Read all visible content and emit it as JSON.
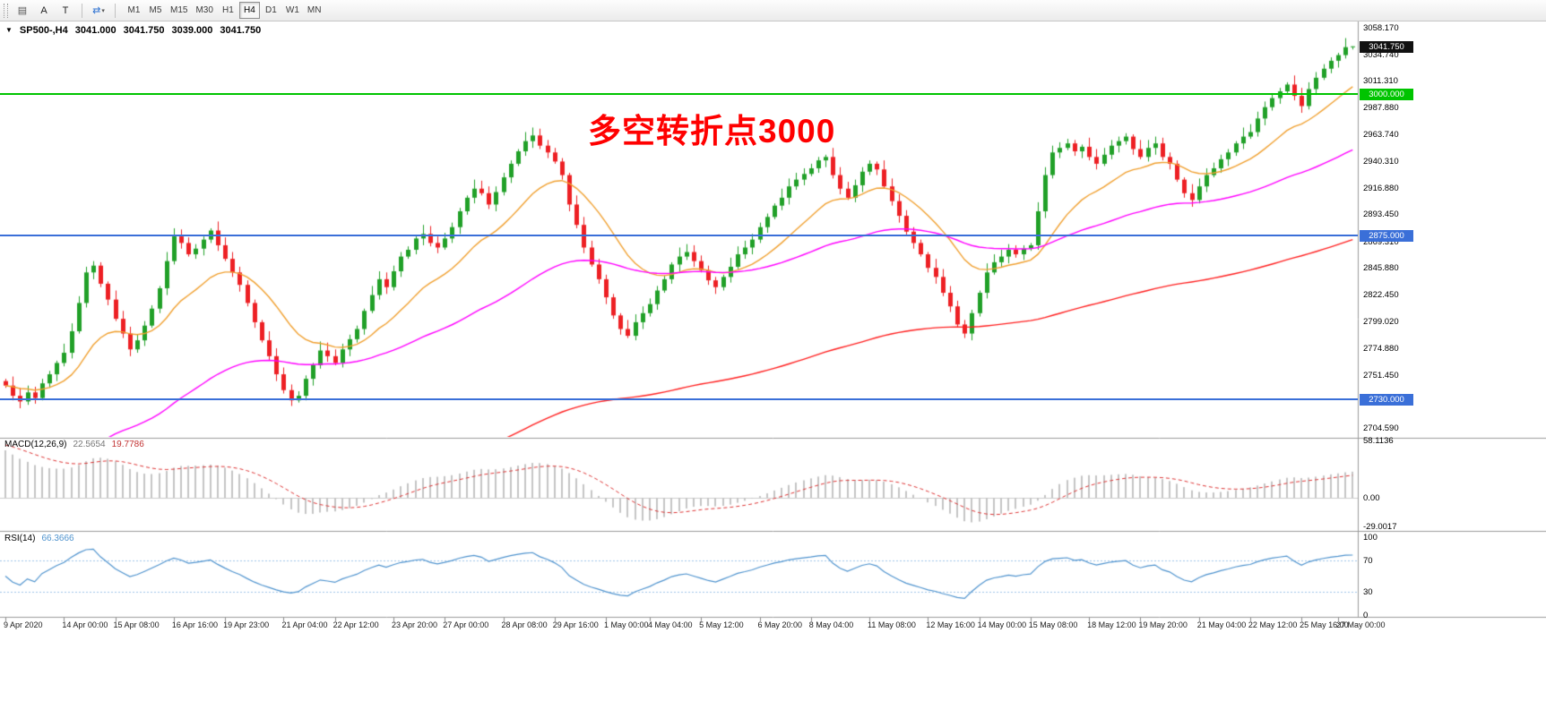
{
  "toolbar": {
    "tools": [
      {
        "name": "chart-window-tool",
        "glyph": "▤",
        "color": "#555555"
      },
      {
        "name": "annotation-letter-tool",
        "glyph": "A",
        "color": "#222222"
      },
      {
        "name": "text-label-tool",
        "glyph": "T",
        "color": "#222222",
        "sep_after": true
      },
      {
        "name": "symbol-cycle-tool",
        "glyph": "⇄",
        "color": "#2a6fd0",
        "caret": "▾",
        "sep_after": true
      }
    ],
    "timeframes": [
      "M1",
      "M5",
      "M15",
      "M30",
      "H1",
      "H4",
      "D1",
      "W1",
      "MN"
    ],
    "active_timeframe": "H4"
  },
  "chart": {
    "header": {
      "collapse_icon": "▼",
      "symbol": "SP500-,H4",
      "open": "3041.000",
      "high": "3041.750",
      "low": "3039.000",
      "close": "3041.750"
    },
    "annotation": {
      "text": "多空转折点3000",
      "color": "#ff0000"
    },
    "current_price": {
      "label": "3041.750",
      "value": 3041.75,
      "bg": "#111111"
    },
    "colors": {
      "up": "#21a028",
      "down": "#ed2024"
    },
    "price_axis": [
      {
        "v": 3058.17,
        "t": "3058.170"
      },
      {
        "v": 3034.74,
        "t": "3034.740"
      },
      {
        "v": 3011.31,
        "t": "3011.310"
      },
      {
        "v": 2987.88,
        "t": "2987.880"
      },
      {
        "v": 2963.74,
        "t": "2963.740"
      },
      {
        "v": 2940.31,
        "t": "2940.310"
      },
      {
        "v": 2916.88,
        "t": "2916.880"
      },
      {
        "v": 2893.45,
        "t": "2893.450"
      },
      {
        "v": 2869.31,
        "t": "2869.310"
      },
      {
        "v": 2845.88,
        "t": "2845.880"
      },
      {
        "v": 2822.45,
        "t": "2822.450"
      },
      {
        "v": 2799.02,
        "t": "2799.020"
      },
      {
        "v": 2774.88,
        "t": "2774.880"
      },
      {
        "v": 2751.45,
        "t": "2751.450"
      },
      {
        "v": 2704.59,
        "t": "2704.590"
      }
    ]
  },
  "macd_panel": {
    "title": "MACD(12,26,9)",
    "main_value": "22.5654",
    "signal_value": "19.7786",
    "axis": [
      {
        "v": 58.1136,
        "t": "58.1136"
      },
      {
        "v": 0,
        "t": "0.00"
      },
      {
        "v": -29.0017,
        "t": "-29.0017"
      }
    ]
  },
  "rsi_panel": {
    "title": "RSI(14)",
    "value": "66.3666",
    "levels": [
      70,
      30
    ],
    "axis": [
      {
        "v": 100,
        "t": "100"
      },
      {
        "v": 70,
        "t": "70"
      },
      {
        "v": 30,
        "t": "30"
      },
      {
        "v": 0,
        "t": "0"
      }
    ]
  },
  "time_axis": {
    "labels": [
      {
        "t": "9 Apr 2020",
        "bar": 0
      },
      {
        "t": "14 Apr 00:00",
        "bar": 8
      },
      {
        "t": "15 Apr 08:00",
        "bar": 15
      },
      {
        "t": "16 Apr 16:00",
        "bar": 23
      },
      {
        "t": "19 Apr 23:00",
        "bar": 30
      },
      {
        "t": "21 Apr 04:00",
        "bar": 38
      },
      {
        "t": "22 Apr 12:00",
        "bar": 45
      },
      {
        "t": "23 Apr 20:00",
        "bar": 53
      },
      {
        "t": "27 Apr 00:00",
        "bar": 60
      },
      {
        "t": "28 Apr 08:00",
        "bar": 68
      },
      {
        "t": "29 Apr 16:00",
        "bar": 75
      },
      {
        "t": "1 May 00:00",
        "bar": 82
      },
      {
        "t": "4 May 04:00",
        "bar": 88
      },
      {
        "t": "5 May 12:00",
        "bar": 95
      },
      {
        "t": "6 May 20:00",
        "bar": 103
      },
      {
        "t": "8 May 04:00",
        "bar": 110
      },
      {
        "t": "11 May 08:00",
        "bar": 118
      },
      {
        "t": "12 May 16:00",
        "bar": 126
      },
      {
        "t": "14 May 00:00",
        "bar": 133
      },
      {
        "t": "15 May 08:00",
        "bar": 140
      },
      {
        "t": "18 May 12:00",
        "bar": 148
      },
      {
        "t": "19 May 20:00",
        "bar": 155
      },
      {
        "t": "21 May 04:00",
        "bar": 163
      },
      {
        "t": "22 May 12:00",
        "bar": 170
      },
      {
        "t": "25 May 16:00",
        "bar": 177
      },
      {
        "t": "27 May 00:00",
        "bar": 182
      }
    ]
  },
  "chart_data": {
    "type": "candlestick",
    "symbol": "SP500-",
    "timeframe": "H4",
    "y_axis": {
      "top": 3058.17,
      "bottom": 2704.59
    },
    "first_open": 2746,
    "closes": [
      2742,
      2733,
      2728,
      2736,
      2731,
      2744,
      2752,
      2762,
      2771,
      2790,
      2815,
      2842,
      2848,
      2832,
      2818,
      2801,
      2788,
      2774,
      2782,
      2795,
      2810,
      2828,
      2852,
      2874,
      2868,
      2858,
      2863,
      2871,
      2879,
      2866,
      2854,
      2842,
      2831,
      2815,
      2798,
      2782,
      2768,
      2752,
      2738,
      2729,
      2733,
      2748,
      2760,
      2773,
      2768,
      2762,
      2774,
      2783,
      2792,
      2808,
      2822,
      2836,
      2829,
      2843,
      2856,
      2862,
      2872,
      2876,
      2868,
      2864,
      2872,
      2882,
      2896,
      2908,
      2916,
      2912,
      2902,
      2913,
      2926,
      2938,
      2949,
      2958,
      2963,
      2954,
      2948,
      2940,
      2928,
      2902,
      2884,
      2864,
      2849,
      2836,
      2820,
      2804,
      2792,
      2786,
      2798,
      2806,
      2814,
      2826,
      2836,
      2849,
      2856,
      2860,
      2852,
      2844,
      2835,
      2829,
      2838,
      2847,
      2858,
      2864,
      2871,
      2882,
      2891,
      2901,
      2908,
      2918,
      2924,
      2929,
      2934,
      2941,
      2944,
      2928,
      2916,
      2908,
      2919,
      2931,
      2938,
      2933,
      2918,
      2905,
      2892,
      2878,
      2868,
      2858,
      2846,
      2838,
      2824,
      2812,
      2796,
      2788,
      2806,
      2824,
      2842,
      2851,
      2856,
      2862,
      2858,
      2863,
      2866,
      2896,
      2928,
      2948,
      2952,
      2956,
      2949,
      2953,
      2944,
      2938,
      2946,
      2954,
      2958,
      2962,
      2951,
      2944,
      2952,
      2956,
      2944,
      2938,
      2924,
      2912,
      2906,
      2918,
      2928,
      2934,
      2942,
      2948,
      2956,
      2962,
      2966,
      2978,
      2988,
      2996,
      3002,
      3008,
      2998,
      2989,
      3004,
      3014,
      3022,
      3029,
      3034,
      3041,
      3041.75
    ],
    "last_ohlc": {
      "o": 3041.0,
      "h": 3041.75,
      "l": 3039.0,
      "c": 3041.75
    },
    "hlines": [
      {
        "value": 3000.0,
        "label": "3000.000",
        "color": "#00c400",
        "width": 2
      },
      {
        "value": 2875.0,
        "label": "2875.000",
        "color": "#3a6fd8",
        "width": 2
      },
      {
        "value": 2730.0,
        "label": "2730.000",
        "color": "#3a6fd8",
        "width": 2
      }
    ],
    "moving_averages": [
      {
        "name": "fast",
        "color": "#f0a030"
      },
      {
        "name": "medium",
        "color": "#ff00ff"
      },
      {
        "name": "slow",
        "color": "#ff2020"
      }
    ],
    "macd": {
      "fast": 12,
      "slow": 26,
      "signal": 9,
      "current_macd": 22.5654,
      "current_signal": 19.7786,
      "histogram_color": "#c4c4c4",
      "signal_color": "#dd3333"
    },
    "rsi": {
      "period": 14,
      "current": 66.3666,
      "line_color": "#4f93ce",
      "level_color": "#9fc5e8"
    }
  }
}
